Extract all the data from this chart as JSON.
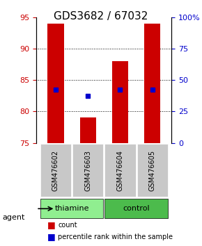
{
  "title": "GDS3682 / 67032",
  "samples": [
    "GSM476602",
    "GSM476603",
    "GSM476604",
    "GSM476605"
  ],
  "groups": [
    "thiamine",
    "thiamine",
    "control",
    "control"
  ],
  "group_colors": {
    "thiamine": "#90EE90",
    "control": "#4CBB4C"
  },
  "bar_bottom": 75,
  "bar_tops": [
    94,
    79,
    88,
    94
  ],
  "bar_color": "#CC0000",
  "percentile_values": [
    83.5,
    82.5,
    83.5,
    83.5
  ],
  "percentile_color": "#0000CC",
  "ylim_left": [
    75,
    95
  ],
  "ylim_right": [
    0,
    100
  ],
  "yticks_left": [
    75,
    80,
    85,
    90,
    95
  ],
  "yticks_right": [
    0,
    25,
    50,
    75,
    100
  ],
  "ytick_right_labels": [
    "0",
    "25",
    "50",
    "75",
    "100%"
  ],
  "grid_yticks": [
    80,
    85,
    90
  ],
  "bar_width": 0.5,
  "background_color": "#ffffff",
  "plot_bg": "#ffffff",
  "left_tick_color": "#CC0000",
  "right_tick_color": "#0000CC",
  "agent_label": "agent",
  "legend_count_color": "#CC0000",
  "legend_pct_color": "#0000CC"
}
